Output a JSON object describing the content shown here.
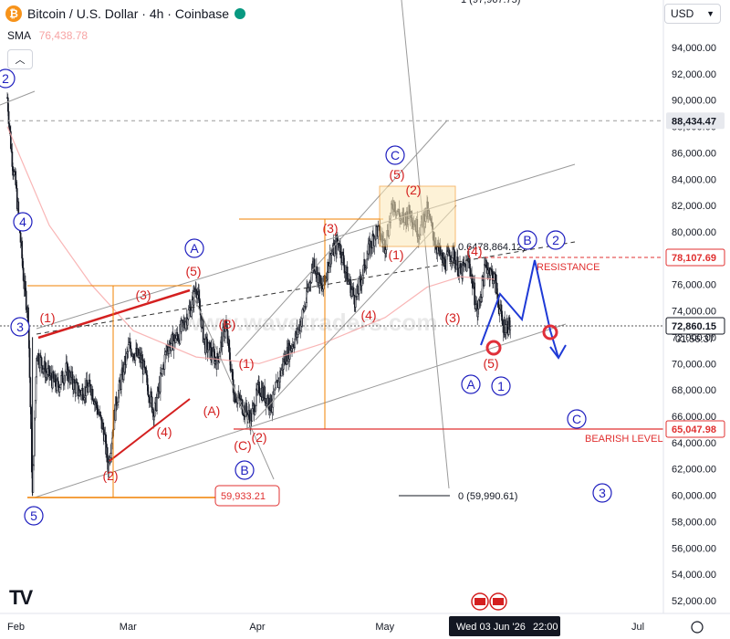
{
  "header": {
    "symbol_title": "Bitcoin / U.S. Dollar · 4h · Coinbase",
    "sma_label": "SMA",
    "sma_value": "76,438.78",
    "currency": "USD",
    "cropped_top_label": "1 (97,967.75)"
  },
  "colors": {
    "background": "#ffffff",
    "candles": "#131722",
    "wave_blue": "#1f1fbf",
    "wave_red": "#d42020",
    "fib_orange": "#f08000",
    "channel_gray": "#9a9a9a",
    "resistance_red": "#e03030",
    "sma": "#f7a4a4",
    "price_label_bg": "#131722"
  },
  "chart_data": {
    "type": "candlestick",
    "symbol": "Bitcoin / U.S. Dollar",
    "timeframe": "4h",
    "exchange": "Coinbase",
    "ylim": [
      51000,
      100000
    ],
    "y_ticks": [
      "94,000.00",
      "92,000.00",
      "90,000.00",
      "88,000.00",
      "86,000.00",
      "84,000.00",
      "82,000.00",
      "80,000.00",
      "78,000.00",
      "76,000.00",
      "74,000.00",
      "72,000.00",
      "70,000.00",
      "68,000.00",
      "66,000.00",
      "64,000.00",
      "62,000.00",
      "60,000.00",
      "58,000.00",
      "56,000.00",
      "54,000.00",
      "52,000.00"
    ],
    "x_ticks": [
      "Feb",
      "Mar",
      "Apr",
      "May",
      "Jun",
      "Jul"
    ],
    "crosshair_date": "Wed 03 Jun '26",
    "crosshair_time": "22:00",
    "price_path": [
      {
        "t": "Feb 01",
        "p": 90200
      },
      {
        "t": "Feb 02",
        "p": 86000
      },
      {
        "t": "Feb 03",
        "p": 83500
      },
      {
        "t": "Feb 04",
        "p": 80000
      },
      {
        "t": "Feb 05",
        "p": 76000
      },
      {
        "t": "Feb 06",
        "p": 73500
      },
      {
        "t": "Feb 07",
        "p": 60000
      },
      {
        "t": "Feb 08",
        "p": 70800
      },
      {
        "t": "Feb 10",
        "p": 69500
      },
      {
        "t": "Feb 13",
        "p": 68200
      },
      {
        "t": "Feb 15",
        "p": 69500
      },
      {
        "t": "Feb 18",
        "p": 67800
      },
      {
        "t": "Feb 21",
        "p": 68200
      },
      {
        "t": "Feb 24",
        "p": 64800
      },
      {
        "t": "Feb 25",
        "p": 62200
      },
      {
        "t": "Feb 27",
        "p": 67200
      },
      {
        "t": "Mar 02",
        "p": 71300
      },
      {
        "t": "Mar 05",
        "p": 70200
      },
      {
        "t": "Mar 08",
        "p": 66200
      },
      {
        "t": "Mar 11",
        "p": 71200
      },
      {
        "t": "Mar 14",
        "p": 72200
      },
      {
        "t": "Mar 17",
        "p": 74500
      },
      {
        "t": "Mar 18",
        "p": 76000
      },
      {
        "t": "Mar 20",
        "p": 71500
      },
      {
        "t": "Mar 23",
        "p": 70200
      },
      {
        "t": "Mar 25",
        "p": 73000
      },
      {
        "t": "Mar 27",
        "p": 67800
      },
      {
        "t": "Mar 29",
        "p": 66800
      },
      {
        "t": "Mar 31",
        "p": 65800
      },
      {
        "t": "Apr 02",
        "p": 68200
      },
      {
        "t": "Apr 05",
        "p": 66800
      },
      {
        "t": "Apr 08",
        "p": 70300
      },
      {
        "t": "Apr 11",
        "p": 72200
      },
      {
        "t": "Apr 13",
        "p": 74500
      },
      {
        "t": "Apr 15",
        "p": 77800
      },
      {
        "t": "Apr 17",
        "p": 75500
      },
      {
        "t": "Apr 19",
        "p": 78200
      },
      {
        "t": "Apr 21",
        "p": 79200
      },
      {
        "t": "Apr 23",
        "p": 76500
      },
      {
        "t": "Apr 25",
        "p": 74800
      },
      {
        "t": "Apr 28",
        "p": 78500
      },
      {
        "t": "Apr 30",
        "p": 80200
      },
      {
        "t": "May 02",
        "p": 79000
      },
      {
        "t": "May 04",
        "p": 82300
      },
      {
        "t": "May 06",
        "p": 80800
      },
      {
        "t": "May 08",
        "p": 81500
      },
      {
        "t": "May 10",
        "p": 80000
      },
      {
        "t": "May 12",
        "p": 81600
      },
      {
        "t": "May 14",
        "p": 79200
      },
      {
        "t": "May 16",
        "p": 77500
      },
      {
        "t": "May 18",
        "p": 78500
      },
      {
        "t": "May 20",
        "p": 76800
      },
      {
        "t": "May 22",
        "p": 77800
      },
      {
        "t": "May 24",
        "p": 73800
      },
      {
        "t": "May 26",
        "p": 77500
      },
      {
        "t": "May 28",
        "p": 76500
      },
      {
        "t": "May 30",
        "p": 72900
      },
      {
        "t": "Jun 01",
        "p": 72860
      }
    ],
    "price_labels": [
      {
        "value": "88,434.47",
        "style": "dashed-gray-line"
      },
      {
        "value": "78,107.69",
        "style": "resistance"
      },
      {
        "value": "72,860.15",
        "style": "last-price"
      },
      {
        "value": "01:56:37",
        "style": "countdown"
      },
      {
        "value": "65,047.98",
        "style": "bearish-level"
      }
    ],
    "annotations": {
      "resistance": "RESISTANCE",
      "bearish_level": "BEARISH LEVEL",
      "fib_upper": "0.6478,864.12)",
      "fib_lower": "0 (59,990.61)",
      "low_box": "59,933.21",
      "watermark": "www.wavetraders.com"
    },
    "wave_labels_blue": [
      "2",
      "4",
      "3",
      "5",
      "A",
      "B",
      "C",
      "B",
      "2",
      "A",
      "1",
      "C",
      "3"
    ],
    "wave_labels_red": [
      "(1)",
      "(3)",
      "(5)",
      "(2)",
      "(4)",
      "(B)",
      "(A)",
      "(1)",
      "(C)",
      "(2)",
      "(3)",
      "(4)",
      "(5)",
      "(2)",
      "(1)",
      "(3)",
      "(4)",
      "(5)"
    ]
  }
}
